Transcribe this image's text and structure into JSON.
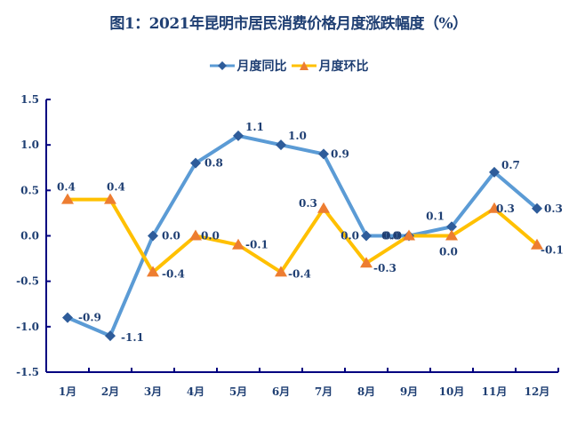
{
  "title": "图1：2021年昆明市居民消费价格月度涨跌幅度（%）",
  "legend": [
    {
      "label": "月度同比",
      "line_color": "#5B9BD5",
      "marker_color": "#2E5C9A",
      "marker": "diamond"
    },
    {
      "label": "月度环比",
      "line_color": "#FFC000",
      "marker_color": "#ED7D31",
      "marker": "triangle"
    }
  ],
  "colors": {
    "axis": "#000080",
    "text": "#1F3F73"
  },
  "chart_data": {
    "type": "line",
    "title": "图1：2021年昆明市居民消费价格月度涨跌幅度（%）",
    "xlabel": "",
    "ylabel": "",
    "categories": [
      "1月",
      "2月",
      "3月",
      "4月",
      "5月",
      "6月",
      "7月",
      "8月",
      "9月",
      "10月",
      "11月",
      "12月"
    ],
    "series": [
      {
        "name": "月度同比",
        "values": [
          -0.9,
          -1.1,
          0.0,
          0.8,
          1.1,
          1.0,
          0.9,
          0.0,
          0.0,
          0.1,
          0.7,
          0.3
        ]
      },
      {
        "name": "月度环比",
        "values": [
          0.4,
          0.4,
          -0.4,
          0.0,
          -0.1,
          -0.4,
          0.3,
          -0.3,
          0.0,
          0.0,
          0.3,
          -0.1
        ]
      }
    ],
    "ylim": [
      -1.5,
      1.5
    ],
    "yticks": [
      "1.5",
      "1.0",
      "0.5",
      "0.0",
      "-0.5",
      "-1.0",
      "-1.5"
    ],
    "grid": false,
    "legend_position": "top",
    "data_labels": {
      "月度同比": [
        "-0.9",
        "-1.1",
        "0.0",
        "0.8",
        "1.1",
        "1.0",
        "0.9",
        "0.0",
        "0.0",
        "0.1",
        "0.7",
        "0.3"
      ],
      "月度环比": [
        "0.4",
        "0.4",
        "-0.4",
        "0.0",
        "-0.1",
        "-0.4",
        "0.3",
        "-0.3",
        "0.0",
        "0.0",
        "0.3",
        "-0.1"
      ]
    }
  }
}
